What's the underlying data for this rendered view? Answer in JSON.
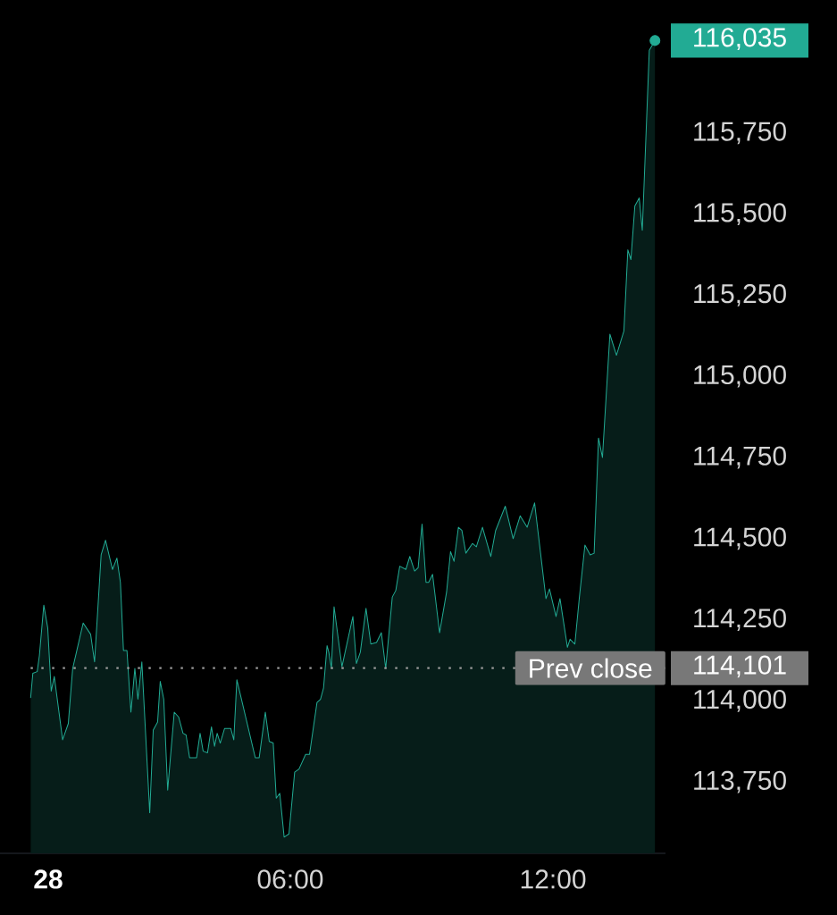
{
  "chart_data": {
    "type": "area",
    "x": [
      0.07,
      0.12,
      0.22,
      0.27,
      0.37,
      0.46,
      0.54,
      0.61,
      0.8,
      0.93,
      1.03,
      1.27,
      1.44,
      1.53,
      1.68,
      1.78,
      1.94,
      2.04,
      2.12,
      2.19,
      2.27,
      2.36,
      2.45,
      2.52,
      2.61,
      2.79,
      2.87,
      2.97,
      3.03,
      3.11,
      3.2,
      3.35,
      3.45,
      3.55,
      3.62,
      3.7,
      3.86,
      3.94,
      4.01,
      4.11,
      4.2,
      4.27,
      4.33,
      4.4,
      4.5,
      4.64,
      4.71,
      4.78,
      5.2,
      5.29,
      5.43,
      5.52,
      5.61,
      5.68,
      5.76,
      5.86,
      5.97,
      6.1,
      6.2,
      6.35,
      6.44,
      6.61,
      6.69,
      6.76,
      6.84,
      6.88,
      6.94,
      7.0,
      7.18,
      7.43,
      7.51,
      7.6,
      7.73,
      7.84,
      7.97,
      8.08,
      8.18,
      8.33,
      8.41,
      8.5,
      8.64,
      8.73,
      8.84,
      8.92,
      9.01,
      9.1,
      9.16,
      9.25,
      9.41,
      9.57,
      9.66,
      9.74,
      9.84,
      9.92,
      10.01,
      10.16,
      10.25,
      10.39,
      10.58,
      10.69,
      10.91,
      11.09,
      11.25,
      11.41,
      11.58,
      11.84,
      11.92,
      12.07,
      12.16,
      12.33,
      12.39,
      12.5,
      12.6,
      12.73,
      12.85,
      12.94,
      13.04,
      13.13,
      13.3,
      13.45,
      13.62,
      13.71,
      13.78,
      13.87,
      13.97,
      14.04,
      14.2,
      14.33
    ],
    "series": [
      {
        "color": "#22ab94",
        "values": [
          114010,
          114085,
          114090,
          114140,
          114295,
          114225,
          114030,
          114075,
          113880,
          113930,
          114100,
          114240,
          114205,
          114120,
          114450,
          114495,
          114405,
          114440,
          114365,
          114155,
          114155,
          113965,
          114100,
          114005,
          114120,
          113655,
          113910,
          113935,
          114060,
          114005,
          113725,
          113965,
          113950,
          113900,
          113895,
          113825,
          113825,
          113900,
          113845,
          113840,
          113920,
          113860,
          113900,
          113870,
          113915,
          113915,
          113880,
          114065,
          113825,
          113825,
          113965,
          113875,
          113870,
          113700,
          113715,
          113580,
          113590,
          113780,
          113790,
          113835,
          113835,
          113995,
          114005,
          114040,
          114170,
          114150,
          114100,
          114290,
          114105,
          114260,
          114115,
          114150,
          114285,
          114175,
          114180,
          114210,
          114100,
          114320,
          114340,
          114415,
          114405,
          114445,
          114400,
          114410,
          114545,
          114365,
          114365,
          114390,
          114210,
          114335,
          114460,
          114430,
          114535,
          114525,
          114455,
          114485,
          114475,
          114535,
          114445,
          114525,
          114600,
          114500,
          114570,
          114535,
          114610,
          114315,
          114345,
          114260,
          114315,
          114165,
          114190,
          114175,
          114315,
          114480,
          114450,
          114455,
          114810,
          114750,
          115130,
          115065,
          115140,
          115390,
          115360,
          115525,
          115550,
          115450,
          116005,
          116035
        ]
      }
    ],
    "xlim": [
      -0.63,
      14.57
    ],
    "ylim": [
      113530,
      116160
    ],
    "xticks": [
      {
        "value": 6,
        "label": "06:00"
      },
      {
        "value": 12,
        "label": "12:00"
      }
    ],
    "yticks": [
      {
        "value": 113750,
        "label": "113,750"
      },
      {
        "value": 114000,
        "label": "114,000"
      },
      {
        "value": 114250,
        "label": "114,250"
      },
      {
        "value": 114500,
        "label": "114,500"
      },
      {
        "value": 114750,
        "label": "114,750"
      },
      {
        "value": 115000,
        "label": "115,000"
      },
      {
        "value": 115250,
        "label": "115,250"
      },
      {
        "value": 115500,
        "label": "115,500"
      },
      {
        "value": 115750,
        "label": "115,750"
      },
      {
        "value": 114101,
        "label": "114,101"
      },
      {
        "value": 116035,
        "label": "116,035"
      }
    ],
    "ref_lines": [
      {
        "axis": "y",
        "value": 114101,
        "label": "Prev close",
        "line_style": "dotted",
        "color": "#9a9a9a"
      }
    ],
    "annotations": [
      "28"
    ]
  }
}
